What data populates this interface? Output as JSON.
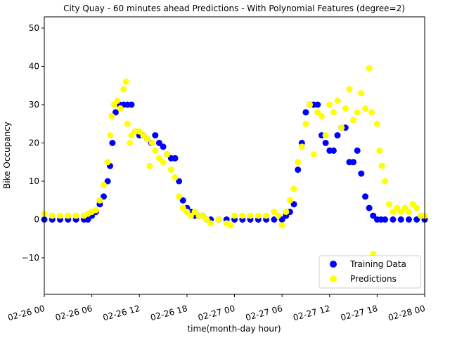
{
  "chart_data": {
    "type": "scatter",
    "title": "City Quay - 60 minutes ahead Predictions - With Polynomial Features (degree=2)",
    "xlabel": "time(month-day hour)",
    "ylabel": "Bike Occupancy",
    "x_range_hours": [
      0,
      48
    ],
    "ylim": [
      -10,
      53
    ],
    "x_ticks": [
      {
        "hour": 0,
        "label": "02-26 00"
      },
      {
        "hour": 6,
        "label": "02-26 06"
      },
      {
        "hour": 12,
        "label": "02-26 12"
      },
      {
        "hour": 18,
        "label": "02-26 18"
      },
      {
        "hour": 24,
        "label": "02-27 00"
      },
      {
        "hour": 30,
        "label": "02-27 06"
      },
      {
        "hour": 36,
        "label": "02-27 12"
      },
      {
        "hour": 42,
        "label": "02-27 18"
      },
      {
        "hour": 48,
        "label": "02-28 00"
      }
    ],
    "y_ticks": [
      -10,
      0,
      10,
      20,
      30,
      40,
      50
    ],
    "legend_position": "bottom-right",
    "series": [
      {
        "name": "Training Data",
        "color": "#0000ff",
        "points": [
          [
            0,
            0
          ],
          [
            1,
            0
          ],
          [
            2,
            0
          ],
          [
            3,
            0
          ],
          [
            4,
            0
          ],
          [
            5,
            0
          ],
          [
            5.5,
            0
          ],
          [
            6,
            1
          ],
          [
            6.5,
            2
          ],
          [
            7,
            4
          ],
          [
            7.5,
            6
          ],
          [
            8,
            10
          ],
          [
            8.3,
            14
          ],
          [
            8.6,
            20
          ],
          [
            9,
            28
          ],
          [
            9.5,
            30
          ],
          [
            10,
            30
          ],
          [
            10.5,
            30
          ],
          [
            11,
            30
          ],
          [
            11.5,
            23
          ],
          [
            12,
            22
          ],
          [
            12.5,
            22
          ],
          [
            13,
            21
          ],
          [
            13.5,
            20
          ],
          [
            14,
            22
          ],
          [
            14.5,
            20
          ],
          [
            15,
            19
          ],
          [
            15.5,
            17
          ],
          [
            16,
            16
          ],
          [
            16.5,
            16
          ],
          [
            17,
            10
          ],
          [
            17.5,
            5
          ],
          [
            18,
            3
          ],
          [
            18.5,
            2
          ],
          [
            19,
            1
          ],
          [
            19.5,
            1
          ],
          [
            20,
            1
          ],
          [
            20.5,
            0
          ],
          [
            21,
            0
          ],
          [
            22,
            0
          ],
          [
            23,
            0
          ],
          [
            24,
            0
          ],
          [
            25,
            0
          ],
          [
            26,
            0
          ],
          [
            27,
            0
          ],
          [
            28,
            0
          ],
          [
            29,
            0
          ],
          [
            30,
            0
          ],
          [
            30.5,
            1
          ],
          [
            31,
            2
          ],
          [
            31.5,
            4
          ],
          [
            32,
            13
          ],
          [
            32.5,
            20
          ],
          [
            33,
            28
          ],
          [
            33.5,
            30
          ],
          [
            34,
            30
          ],
          [
            34.5,
            30
          ],
          [
            35,
            22
          ],
          [
            35.5,
            20
          ],
          [
            36,
            18
          ],
          [
            36.5,
            18
          ],
          [
            37,
            22
          ],
          [
            37.5,
            24
          ],
          [
            38,
            24
          ],
          [
            38.5,
            15
          ],
          [
            39,
            15
          ],
          [
            39.5,
            18
          ],
          [
            40,
            12
          ],
          [
            40.5,
            6
          ],
          [
            41,
            3
          ],
          [
            41.5,
            1
          ],
          [
            42,
            0
          ],
          [
            42.5,
            0
          ],
          [
            43,
            0
          ],
          [
            44,
            0
          ],
          [
            45,
            0
          ],
          [
            46,
            0
          ],
          [
            47,
            0
          ],
          [
            48,
            0
          ]
        ]
      },
      {
        "name": "Predictions",
        "color": "#ffff00",
        "points": [
          [
            0,
            1.5
          ],
          [
            1,
            1
          ],
          [
            2,
            1
          ],
          [
            3,
            1
          ],
          [
            4,
            1
          ],
          [
            5,
            1
          ],
          [
            5.5,
            1.5
          ],
          [
            6,
            2
          ],
          [
            6.5,
            2.5
          ],
          [
            7,
            5
          ],
          [
            7.5,
            9
          ],
          [
            8,
            15
          ],
          [
            8.3,
            22
          ],
          [
            8.5,
            27
          ],
          [
            8.8,
            30
          ],
          [
            9.2,
            31
          ],
          [
            9.6,
            29
          ],
          [
            10,
            34
          ],
          [
            10.3,
            36
          ],
          [
            10.5,
            25
          ],
          [
            10.8,
            20
          ],
          [
            11,
            22
          ],
          [
            11.5,
            23
          ],
          [
            12,
            23
          ],
          [
            12.5,
            22
          ],
          [
            13,
            21
          ],
          [
            13.3,
            14
          ],
          [
            13.6,
            20
          ],
          [
            14,
            18
          ],
          [
            14.5,
            16
          ],
          [
            15,
            15
          ],
          [
            15.5,
            17
          ],
          [
            16,
            13
          ],
          [
            16.5,
            11
          ],
          [
            17,
            6
          ],
          [
            17.5,
            3
          ],
          [
            18,
            2
          ],
          [
            18.5,
            1
          ],
          [
            19,
            2
          ],
          [
            19.5,
            1
          ],
          [
            20,
            1
          ],
          [
            20.5,
            0
          ],
          [
            21,
            -1
          ],
          [
            22,
            0
          ],
          [
            23,
            -1
          ],
          [
            23.5,
            -1.5
          ],
          [
            24,
            1
          ],
          [
            25,
            1
          ],
          [
            26,
            1
          ],
          [
            27,
            1
          ],
          [
            28,
            1
          ],
          [
            29,
            2
          ],
          [
            29.5,
            1
          ],
          [
            30,
            -1.5
          ],
          [
            30.5,
            2
          ],
          [
            31,
            5
          ],
          [
            31.5,
            8
          ],
          [
            32,
            15
          ],
          [
            32.5,
            19
          ],
          [
            33,
            25
          ],
          [
            33.5,
            30
          ],
          [
            34,
            17
          ],
          [
            34.5,
            28
          ],
          [
            35,
            27
          ],
          [
            35.5,
            22
          ],
          [
            36,
            30
          ],
          [
            36.5,
            28
          ],
          [
            37,
            31
          ],
          [
            37.5,
            24
          ],
          [
            38,
            29
          ],
          [
            38.5,
            34
          ],
          [
            39,
            26
          ],
          [
            39.5,
            28
          ],
          [
            40,
            33
          ],
          [
            40.5,
            29
          ],
          [
            41,
            39.5
          ],
          [
            41.3,
            28
          ],
          [
            41.5,
            -9
          ],
          [
            42,
            25
          ],
          [
            42.3,
            18
          ],
          [
            42.6,
            14
          ],
          [
            43,
            10
          ],
          [
            43.5,
            4
          ],
          [
            44,
            2
          ],
          [
            44.5,
            3
          ],
          [
            45,
            2
          ],
          [
            45.5,
            3
          ],
          [
            46,
            2
          ],
          [
            46.5,
            4
          ],
          [
            47,
            3
          ],
          [
            47.5,
            1
          ],
          [
            48,
            1
          ]
        ]
      }
    ]
  }
}
